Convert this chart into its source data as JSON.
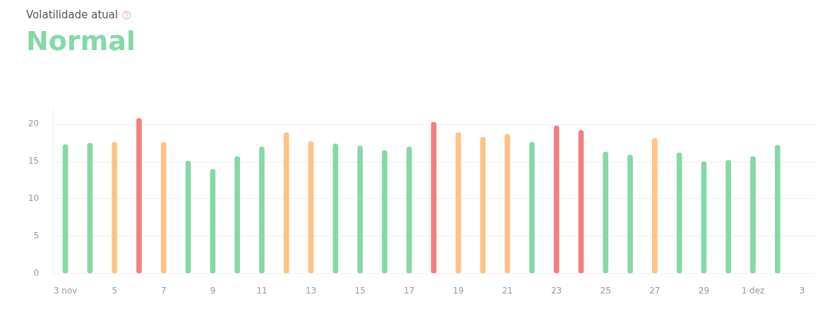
{
  "chart_data": {
    "type": "bar",
    "title": "Volatilidade atual",
    "subtitle": "Normal",
    "categories": [
      "3 nov",
      null,
      "5",
      null,
      "7",
      null,
      "9",
      null,
      "11",
      null,
      "13",
      null,
      "15",
      null,
      "17",
      null,
      "19",
      null,
      "21",
      null,
      "23",
      null,
      "25",
      null,
      "27",
      null,
      "29",
      null,
      "1 dez",
      null,
      "3"
    ],
    "values": [
      17.3,
      17.5,
      17.6,
      20.8,
      17.6,
      15.1,
      14.0,
      15.7,
      17.0,
      18.9,
      17.7,
      17.4,
      17.1,
      16.5,
      17.0,
      20.3,
      18.9,
      18.3,
      18.7,
      17.6,
      19.8,
      19.2,
      16.3,
      15.9,
      18.1,
      16.2,
      15.0,
      15.2,
      15.7,
      17.2,
      null
    ],
    "colors": [
      "#84d9a6",
      "#84d9a6",
      "#ffc382",
      "#f27e7e",
      "#ffc382",
      "#84d9a6",
      "#84d9a6",
      "#84d9a6",
      "#84d9a6",
      "#ffc382",
      "#ffc382",
      "#84d9a6",
      "#84d9a6",
      "#84d9a6",
      "#84d9a6",
      "#f27e7e",
      "#ffc382",
      "#ffc382",
      "#ffc382",
      "#84d9a6",
      "#f27e7e",
      "#f27e7e",
      "#84d9a6",
      "#84d9a6",
      "#ffc382",
      "#84d9a6",
      "#84d9a6",
      "#84d9a6",
      "#84d9a6",
      "#84d9a6",
      "#84d9a6"
    ],
    "ylim": [
      0,
      22
    ],
    "yticks": [
      0,
      5,
      10,
      15,
      20
    ],
    "grid": "y",
    "legend": false
  }
}
